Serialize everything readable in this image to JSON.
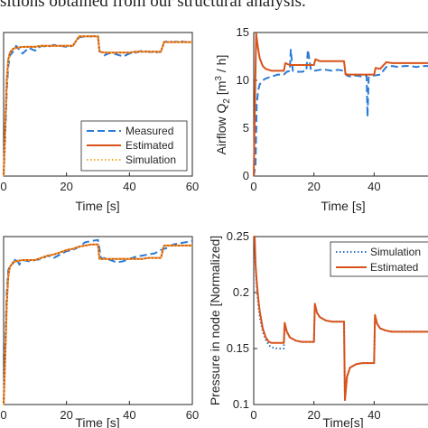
{
  "caption": "sitions obtained from our structural analysis.",
  "chart_data": [
    {
      "type": "line",
      "panel": "top-left",
      "xlabel": "Time [s]",
      "ylabel": "",
      "xlim": [
        0,
        60
      ],
      "ylim": [
        0,
        15
      ],
      "xticks": [
        0,
        20,
        40,
        60
      ],
      "yticks": [],
      "grid": false,
      "legend_position": "bottom-right",
      "series": [
        {
          "name": "Measured",
          "style": "dashed",
          "color": "#2b7bd6",
          "x": [
            0,
            0.5,
            1,
            1.5,
            2,
            3,
            4,
            6,
            8,
            10,
            12,
            14,
            16,
            18,
            20,
            22,
            24,
            26,
            28,
            30,
            30.5,
            32,
            34,
            36,
            38,
            40,
            42,
            44,
            46,
            48,
            50,
            51,
            52,
            54,
            56,
            58,
            60
          ],
          "y": [
            0,
            4,
            9,
            11.5,
            12.6,
            13.0,
            13.6,
            12.8,
            13.4,
            13.1,
            13.6,
            13.5,
            13.7,
            13.6,
            13.5,
            13.6,
            14.5,
            14.6,
            14.6,
            14.7,
            13.1,
            12.6,
            12.9,
            12.7,
            12.5,
            12.8,
            12.9,
            13.1,
            13.0,
            12.9,
            13.0,
            14.0,
            14.1,
            14.0,
            14.1,
            14.0,
            14.0
          ]
        },
        {
          "name": "Estimated",
          "style": "solid",
          "color": "#d95319",
          "x": [
            0,
            0.5,
            1,
            1.5,
            2,
            3,
            4,
            6,
            8,
            10,
            12,
            14,
            16,
            18,
            20,
            22,
            24,
            26,
            28,
            30,
            30.5,
            32,
            34,
            36,
            38,
            40,
            42,
            44,
            46,
            48,
            50,
            51,
            52,
            54,
            56,
            58,
            60
          ],
          "y": [
            0,
            5,
            10,
            12.2,
            12.9,
            13.3,
            13.4,
            13.5,
            13.5,
            13.5,
            13.6,
            13.6,
            13.6,
            13.6,
            13.6,
            13.6,
            14.6,
            14.6,
            14.6,
            14.6,
            13.0,
            12.9,
            12.9,
            12.9,
            12.9,
            12.9,
            13.0,
            13.0,
            13.0,
            13.0,
            13.0,
            14.0,
            14.0,
            14.0,
            14.0,
            14.0,
            14.0
          ]
        },
        {
          "name": "Simulation",
          "style": "dotted",
          "color": "#edb120",
          "x": [
            0,
            0.5,
            1,
            1.5,
            2,
            3,
            4,
            6,
            8,
            10,
            12,
            14,
            16,
            18,
            20,
            22,
            24,
            26,
            28,
            30,
            30.5,
            32,
            34,
            36,
            38,
            40,
            42,
            44,
            46,
            48,
            50,
            51,
            52,
            54,
            56,
            58,
            60
          ],
          "y": [
            0,
            4.5,
            9.6,
            12.0,
            12.8,
            13.3,
            13.4,
            13.5,
            13.5,
            13.5,
            13.6,
            13.6,
            13.6,
            13.6,
            13.6,
            13.6,
            14.6,
            14.6,
            14.6,
            14.6,
            13.0,
            12.9,
            12.9,
            12.9,
            12.9,
            12.9,
            13.0,
            13.0,
            13.0,
            13.0,
            13.0,
            14.0,
            14.0,
            14.0,
            14.0,
            14.0,
            14.0
          ]
        }
      ]
    },
    {
      "type": "line",
      "panel": "top-right",
      "xlabel": "Time [s]",
      "ylabel_main": "Airflow Q",
      "ylabel_sub": "2",
      "ylabel_unit_pre": " [m",
      "ylabel_sup": "3",
      "ylabel_unit_post": " / h]",
      "xlim": [
        0,
        60
      ],
      "ylim": [
        0,
        15
      ],
      "xticks": [
        0,
        20,
        40
      ],
      "yticks": [
        0,
        5,
        10,
        15
      ],
      "grid": false,
      "series": [
        {
          "name": "Measured",
          "style": "dashed",
          "color": "#2b7bd6",
          "x": [
            0,
            0.6,
            1,
            1.5,
            2,
            3,
            4,
            6,
            8,
            10,
            11,
            12,
            12.3,
            13,
            14,
            16,
            17.5,
            18,
            19,
            20,
            22,
            24,
            26,
            28,
            30,
            31,
            32,
            34,
            36,
            37.5,
            37.8,
            38.2,
            39,
            40,
            42,
            44,
            46,
            48,
            50,
            52,
            54,
            56,
            58,
            60
          ],
          "y": [
            0,
            1.2,
            7.5,
            9.0,
            9.6,
            10.0,
            10.2,
            10.4,
            10.6,
            10.6,
            10.9,
            11.0,
            13.2,
            11.0,
            10.9,
            10.9,
            11.0,
            13.2,
            11.1,
            11.0,
            11.1,
            11.1,
            11.0,
            11.1,
            11.0,
            10.5,
            10.4,
            10.5,
            10.4,
            10.5,
            6.2,
            10.3,
            10.4,
            10.5,
            10.6,
            11.4,
            11.5,
            11.4,
            11.5,
            11.5,
            11.4,
            11.5,
            11.5,
            11.5
          ]
        },
        {
          "name": "Estimated",
          "style": "solid",
          "color": "#d95319",
          "x": [
            0,
            0.8,
            1,
            1.5,
            2,
            3,
            4,
            6,
            8,
            10,
            10.5,
            12,
            14,
            16,
            18,
            20,
            20.5,
            22,
            24,
            26,
            28,
            30,
            30.5,
            32,
            34,
            36,
            38,
            40,
            40.5,
            42,
            44,
            46,
            48,
            50,
            52,
            54,
            56,
            58,
            60
          ],
          "y": [
            0,
            14.9,
            14.4,
            13.2,
            12.3,
            11.5,
            11.2,
            11.0,
            11.0,
            11.0,
            11.8,
            11.6,
            11.6,
            11.6,
            11.6,
            11.6,
            12.2,
            12.0,
            12.0,
            12.0,
            12.0,
            12.0,
            10.6,
            10.6,
            10.6,
            10.6,
            10.6,
            10.6,
            11.3,
            11.2,
            11.9,
            11.8,
            11.8,
            11.8,
            11.8,
            11.8,
            11.8,
            11.8,
            11.8
          ]
        }
      ]
    },
    {
      "type": "line",
      "panel": "bottom-left",
      "xlabel": "Time [s]",
      "ylabel": "",
      "xlim": [
        0,
        60
      ],
      "ylim": [
        0,
        15
      ],
      "xticks": [
        0,
        20,
        40,
        60
      ],
      "yticks": [],
      "grid": false,
      "series": [
        {
          "name": "Measured",
          "style": "dashed",
          "color": "#2b7bd6",
          "x": [
            0,
            0.5,
            1,
            1.5,
            2,
            3,
            4,
            5,
            6,
            8,
            10,
            12,
            14,
            16,
            18,
            20,
            22,
            24,
            26,
            28,
            30,
            31,
            32,
            34,
            36,
            38,
            40,
            42,
            44,
            46,
            48,
            50,
            52,
            54,
            56,
            58,
            60
          ],
          "y": [
            0,
            5,
            10,
            12.0,
            12.4,
            12.6,
            13.1,
            12.5,
            12.9,
            12.8,
            12.9,
            13.0,
            13.3,
            13.1,
            13.4,
            13.7,
            13.8,
            14.1,
            14.5,
            14.6,
            14.7,
            13.0,
            13.1,
            12.9,
            12.7,
            12.8,
            13.0,
            13.2,
            13.3,
            13.4,
            13.5,
            13.8,
            14.0,
            14.3,
            14.4,
            14.5,
            14.6
          ]
        },
        {
          "name": "Estimated",
          "style": "solid",
          "color": "#d95319",
          "x": [
            0,
            0.5,
            1,
            1.5,
            2,
            3,
            4,
            6,
            8,
            10,
            12,
            14,
            16,
            18,
            20,
            22,
            24,
            26,
            28,
            30,
            30.5,
            32,
            34,
            36,
            38,
            40,
            42,
            44,
            46,
            48,
            50,
            51,
            52,
            54,
            56,
            58,
            60
          ],
          "y": [
            0,
            4,
            9,
            11.5,
            12.3,
            12.7,
            12.8,
            12.9,
            12.9,
            12.9,
            13.1,
            13.3,
            13.4,
            13.6,
            13.8,
            13.9,
            14.1,
            14.2,
            14.3,
            14.3,
            13.0,
            13.0,
            13.0,
            13.0,
            13.0,
            13.0,
            13.0,
            13.0,
            13.1,
            13.1,
            13.1,
            14.2,
            14.2,
            14.2,
            14.2,
            14.2,
            14.2
          ]
        },
        {
          "name": "Simulation",
          "style": "dotted",
          "color": "#edb120",
          "x": [
            0,
            0.5,
            1,
            1.5,
            2,
            3,
            4,
            6,
            8,
            10,
            12,
            14,
            16,
            18,
            20,
            22,
            24,
            26,
            28,
            30,
            30.5,
            32,
            34,
            36,
            38,
            40,
            42,
            44,
            46,
            48,
            50,
            51,
            52,
            54,
            56,
            58,
            60
          ],
          "y": [
            0,
            4,
            9,
            11.5,
            12.3,
            12.7,
            12.8,
            12.9,
            12.9,
            12.9,
            13.1,
            13.3,
            13.4,
            13.6,
            13.8,
            13.9,
            14.1,
            14.2,
            14.3,
            14.3,
            13.0,
            13.0,
            13.0,
            13.0,
            13.0,
            13.0,
            13.0,
            13.0,
            13.1,
            13.1,
            13.1,
            14.2,
            14.2,
            14.2,
            14.2,
            14.2,
            14.2
          ]
        }
      ]
    },
    {
      "type": "line",
      "panel": "bottom-right",
      "xlabel": "Time[s]",
      "ylabel": "Pressure in node [Normalized]",
      "xlim": [
        0,
        60
      ],
      "ylim": [
        0.1,
        0.25
      ],
      "xticks": [
        0,
        20,
        40
      ],
      "yticks": [
        0.1,
        0.15,
        0.2,
        0.25
      ],
      "grid": false,
      "legend_position": "top-right",
      "series": [
        {
          "name": "Simulation",
          "style": "dotted",
          "color": "#2b6fbf",
          "x": [
            0,
            0.3,
            0.6,
            1,
            1.5,
            2,
            3,
            4,
            5,
            6,
            8,
            10,
            10.3,
            11,
            12,
            14,
            16,
            18,
            20,
            20.3,
            21,
            22,
            24,
            26,
            28,
            30,
            30.3,
            31,
            32,
            34,
            36,
            38,
            40,
            40.3,
            41,
            42,
            44,
            46,
            48,
            50,
            52,
            54,
            56,
            58,
            60
          ],
          "y": [
            0.25,
            0.25,
            0.225,
            0.205,
            0.19,
            0.178,
            0.165,
            0.158,
            0.153,
            0.151,
            0.15,
            0.15,
            0.171,
            0.165,
            0.16,
            0.157,
            0.156,
            0.156,
            0.156,
            0.189,
            0.182,
            0.178,
            0.175,
            0.174,
            0.174,
            0.174,
            0.104,
            0.125,
            0.133,
            0.136,
            0.137,
            0.137,
            0.137,
            0.179,
            0.172,
            0.168,
            0.166,
            0.165,
            0.165,
            0.165,
            0.165,
            0.165,
            0.165,
            0.165,
            0.165
          ]
        },
        {
          "name": "Estimated",
          "style": "solid",
          "color": "#d95319",
          "x": [
            0,
            0.3,
            0.6,
            1,
            1.5,
            2,
            3,
            4,
            5,
            6,
            8,
            10,
            10.3,
            11,
            12,
            14,
            16,
            18,
            20,
            20.3,
            21,
            22,
            24,
            26,
            28,
            30,
            30.3,
            31,
            32,
            34,
            36,
            38,
            40,
            40.3,
            41,
            42,
            44,
            46,
            48,
            50,
            52,
            54,
            56,
            58,
            60
          ],
          "y": [
            0.25,
            0.25,
            0.225,
            0.21,
            0.195,
            0.183,
            0.168,
            0.16,
            0.156,
            0.155,
            0.155,
            0.155,
            0.173,
            0.165,
            0.16,
            0.157,
            0.156,
            0.156,
            0.156,
            0.19,
            0.182,
            0.178,
            0.175,
            0.174,
            0.174,
            0.174,
            0.104,
            0.125,
            0.133,
            0.136,
            0.137,
            0.137,
            0.137,
            0.18,
            0.172,
            0.168,
            0.166,
            0.165,
            0.165,
            0.165,
            0.165,
            0.165,
            0.165,
            0.165,
            0.165
          ]
        }
      ]
    }
  ]
}
